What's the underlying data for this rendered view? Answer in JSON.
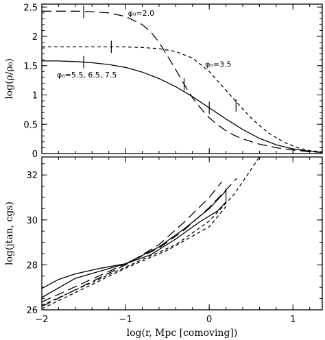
{
  "chart_data": [
    {
      "type": "line",
      "panel": "top",
      "xlim": [
        -2,
        1.35
      ],
      "ylim": [
        0,
        2.55
      ],
      "x_ticks": [
        -2,
        -1,
        0,
        1
      ],
      "y_ticks": [
        0,
        0.5,
        1,
        1.5,
        2,
        2.5
      ],
      "y_tick_labels": [
        "0",
        "0.5",
        "1",
        "1.5",
        "2",
        "2.5"
      ],
      "ylabel": "log(ρ/ρ₀)",
      "xlabel": "",
      "series": [
        {
          "dash": "solid",
          "x": [
            -2.0,
            -1.8,
            -1.6,
            -1.4,
            -1.2,
            -1.0,
            -0.8,
            -0.6,
            -0.4,
            -0.2,
            0.0,
            0.2,
            0.4,
            0.6,
            0.8,
            1.0,
            1.2,
            1.35
          ],
          "y": [
            1.58,
            1.58,
            1.57,
            1.55,
            1.52,
            1.47,
            1.39,
            1.28,
            1.14,
            0.97,
            0.78,
            0.59,
            0.41,
            0.26,
            0.15,
            0.08,
            0.04,
            0.02
          ],
          "markers": [
            {
              "x": -1.5,
              "y": 1.56
            },
            {
              "x": 0.0,
              "y": 0.78
            }
          ]
        },
        {
          "dash": "long",
          "x": [
            -2.0,
            -1.6,
            -1.4,
            -1.2,
            -1.0,
            -0.8,
            -0.7,
            -0.6,
            -0.5,
            -0.4,
            -0.3,
            -0.2,
            -0.1,
            0.0,
            0.1,
            0.2,
            0.3,
            0.4,
            0.6,
            0.8,
            1.0,
            1.2,
            1.35
          ],
          "y": [
            2.43,
            2.43,
            2.42,
            2.4,
            2.34,
            2.2,
            2.08,
            1.9,
            1.67,
            1.43,
            1.18,
            0.95,
            0.77,
            0.61,
            0.49,
            0.39,
            0.31,
            0.25,
            0.16,
            0.1,
            0.06,
            0.03,
            0.02
          ],
          "markers": [
            {
              "x": -1.5,
              "y": 2.42
            },
            {
              "x": -0.3,
              "y": 1.18
            }
          ]
        },
        {
          "dash": "short",
          "x": [
            -2.0,
            -1.6,
            -1.2,
            -1.0,
            -0.8,
            -0.6,
            -0.4,
            -0.2,
            0.0,
            0.1,
            0.2,
            0.3,
            0.4,
            0.5,
            0.6,
            0.7,
            0.8,
            0.9,
            1.0,
            1.1,
            1.2,
            1.35
          ],
          "y": [
            1.82,
            1.82,
            1.82,
            1.82,
            1.81,
            1.79,
            1.74,
            1.63,
            1.4,
            1.24,
            1.08,
            0.92,
            0.76,
            0.61,
            0.48,
            0.36,
            0.27,
            0.19,
            0.13,
            0.08,
            0.05,
            0.03
          ],
          "markers": [
            {
              "x": -1.17,
              "y": 1.82
            },
            {
              "x": 0.32,
              "y": 0.82
            }
          ]
        }
      ],
      "annotations": [
        {
          "text": "φ₀=2.0",
          "x": -0.97,
          "y": 2.35
        },
        {
          "text": "φ₀=3.5",
          "x": -0.05,
          "y": 1.48
        },
        {
          "text": "φ₀=5.5,  6.5,  7.5",
          "x": -1.82,
          "y": 1.3
        }
      ]
    },
    {
      "type": "line",
      "panel": "bottom",
      "xlim": [
        -2,
        1.35
      ],
      "ylim": [
        26,
        32.8
      ],
      "x_ticks": [
        -2,
        -1,
        0,
        1
      ],
      "x_tick_labels": [
        "−2",
        "−1",
        "0",
        "1"
      ],
      "y_ticks": [
        26,
        28,
        30,
        32
      ],
      "y_tick_labels": [
        "26",
        "28",
        "30",
        "32"
      ],
      "ylabel": "log(jtan, cgs)",
      "xlabel": "log(r, Mpc [comoving])",
      "series": [
        {
          "dash": "long",
          "x": [
            -2.0,
            -1.0,
            -0.6,
            -0.3,
            0.0,
            0.15
          ],
          "y": [
            26.15,
            28.0,
            28.9,
            29.9,
            31.0,
            31.7
          ]
        },
        {
          "dash": "solid",
          "x": [
            -2.0,
            -1.6,
            -1.0,
            -0.6,
            -0.3,
            0.0,
            0.2
          ],
          "y": [
            26.55,
            27.4,
            28.05,
            28.8,
            29.6,
            30.5,
            31.3
          ]
        },
        {
          "dash": "solid",
          "x": [
            -2.0,
            -1.8,
            -1.6,
            -1.3,
            -1.0,
            -0.7,
            -0.4,
            -0.1,
            0.1,
            0.2
          ],
          "y": [
            26.95,
            27.35,
            27.6,
            27.85,
            28.05,
            28.45,
            29.15,
            29.95,
            30.4,
            30.8
          ]
        },
        {
          "dash": "long",
          "x": [
            -2.0,
            -1.0,
            -0.6,
            -0.3,
            0.0,
            0.33
          ],
          "y": [
            26.35,
            28.05,
            28.75,
            29.55,
            30.55,
            31.85
          ]
        },
        {
          "dash": "short",
          "x": [
            -2.0,
            -1.0,
            -0.4,
            0.0,
            0.3,
            0.6
          ],
          "y": [
            26.2,
            27.9,
            28.9,
            29.95,
            31.15,
            32.8
          ]
        },
        {
          "dash": "short",
          "x": [
            -2.0,
            -1.0,
            -0.5,
            0.0,
            0.2
          ],
          "y": [
            26.05,
            27.85,
            28.65,
            29.7,
            30.6
          ]
        }
      ],
      "vertical_marks": [
        {
          "x": 0.2,
          "y_from": 30.8,
          "y_to": 31.4
        }
      ]
    }
  ]
}
